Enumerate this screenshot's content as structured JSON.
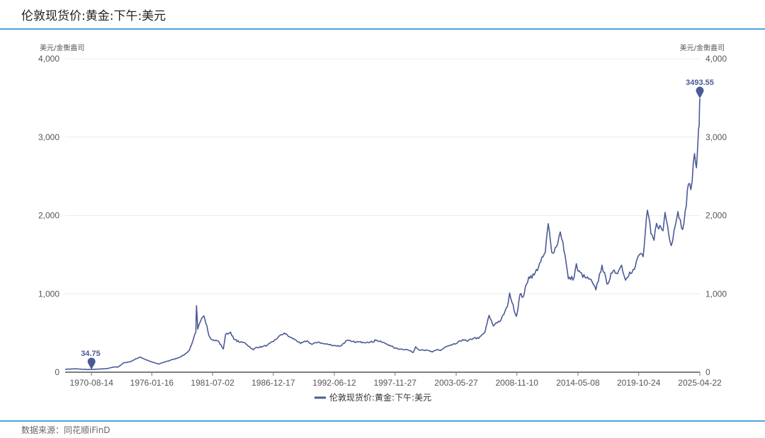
{
  "header": {
    "title": "伦敦现货价:黄金:下午:美元"
  },
  "footer": {
    "source": "数据来源：同花顺iFinD"
  },
  "colors": {
    "line": "#4b5a96",
    "accent_rule": "#4aa3df",
    "grid": "#ececec"
  },
  "chart_data": {
    "type": "line",
    "title": "伦敦现货价:黄金:下午:美元",
    "y_unit_left": "美元/金衡盎司",
    "y_unit_right": "美元/金衡盎司",
    "ylim": [
      0,
      4000
    ],
    "y_ticks": [
      {
        "value": 0,
        "label": "0"
      },
      {
        "value": 1000,
        "label": "1,000"
      },
      {
        "value": 2000,
        "label": "2,000"
      },
      {
        "value": 3000,
        "label": "3,000"
      },
      {
        "value": 4000,
        "label": "4,000"
      }
    ],
    "x_range": [
      "1968-04-01",
      "2025-04-22"
    ],
    "x_ticks": [
      "1970-08-14",
      "1976-01-16",
      "1981-07-02",
      "1986-12-17",
      "1992-06-12",
      "1997-11-27",
      "2003-05-27",
      "2008-11-10",
      "2014-05-08",
      "2019-10-24",
      "2025-04-22"
    ],
    "grid": true,
    "legend_position": "bottom-center",
    "series": [
      {
        "name": "伦敦现货价:黄金:下午:美元",
        "points": [
          [
            "1968-04-01",
            38
          ],
          [
            "1969-03-01",
            43
          ],
          [
            "1970-01-20",
            35
          ],
          [
            "1970-08-14",
            34.75
          ],
          [
            "1971-06-01",
            40
          ],
          [
            "1972-01-01",
            46
          ],
          [
            "1972-08-01",
            66
          ],
          [
            "1973-01-01",
            65
          ],
          [
            "1973-07-01",
            120
          ],
          [
            "1974-01-01",
            130
          ],
          [
            "1974-06-01",
            155
          ],
          [
            "1974-12-30",
            195
          ],
          [
            "1975-06-01",
            165
          ],
          [
            "1976-01-16",
            130
          ],
          [
            "1976-08-25",
            104
          ],
          [
            "1977-06-01",
            140
          ],
          [
            "1977-12-30",
            165
          ],
          [
            "1978-06-01",
            183
          ],
          [
            "1978-12-29",
            226
          ],
          [
            "1979-06-01",
            280
          ],
          [
            "1979-10-01",
            410
          ],
          [
            "1979-12-31",
            512
          ],
          [
            "1980-01-21",
            850
          ],
          [
            "1980-03-01",
            550
          ],
          [
            "1980-06-01",
            650
          ],
          [
            "1980-09-22",
            720
          ],
          [
            "1980-12-31",
            590
          ],
          [
            "1981-03-01",
            470
          ],
          [
            "1981-07-02",
            410
          ],
          [
            "1981-12-31",
            400
          ],
          [
            "1982-06-21",
            297
          ],
          [
            "1982-09-01",
            480
          ],
          [
            "1983-02-15",
            510
          ],
          [
            "1983-06-01",
            420
          ],
          [
            "1983-12-30",
            382
          ],
          [
            "1984-06-01",
            375
          ],
          [
            "1985-02-25",
            285
          ],
          [
            "1985-06-01",
            315
          ],
          [
            "1985-12-31",
            327
          ],
          [
            "1986-06-01",
            345
          ],
          [
            "1986-12-17",
            390
          ],
          [
            "1987-06-01",
            450
          ],
          [
            "1987-12-14",
            500
          ],
          [
            "1988-06-01",
            450
          ],
          [
            "1988-12-30",
            410
          ],
          [
            "1989-06-01",
            365
          ],
          [
            "1989-12-29",
            400
          ],
          [
            "1990-06-01",
            355
          ],
          [
            "1990-12-31",
            386
          ],
          [
            "1991-06-01",
            365
          ],
          [
            "1991-12-31",
            353
          ],
          [
            "1992-06-12",
            340
          ],
          [
            "1992-12-31",
            333
          ],
          [
            "1993-07-30",
            405
          ],
          [
            "1993-12-31",
            390
          ],
          [
            "1994-06-01",
            385
          ],
          [
            "1994-12-30",
            383
          ],
          [
            "1995-06-01",
            385
          ],
          [
            "1995-12-29",
            387
          ],
          [
            "1996-02-02",
            414
          ],
          [
            "1996-12-31",
            369
          ],
          [
            "1997-06-01",
            345
          ],
          [
            "1997-11-27",
            305
          ],
          [
            "1998-06-01",
            295
          ],
          [
            "1998-12-31",
            288
          ],
          [
            "1999-07-20",
            253
          ],
          [
            "1999-10-05",
            325
          ],
          [
            "1999-12-31",
            290
          ],
          [
            "2000-06-01",
            285
          ],
          [
            "2000-12-29",
            272
          ],
          [
            "2001-04-02",
            256
          ],
          [
            "2001-09-20",
            290
          ],
          [
            "2001-12-31",
            277
          ],
          [
            "2002-06-01",
            320
          ],
          [
            "2002-12-31",
            345
          ],
          [
            "2003-05-27",
            365
          ],
          [
            "2003-12-31",
            416
          ],
          [
            "2004-06-01",
            395
          ],
          [
            "2004-12-31",
            438
          ],
          [
            "2005-06-01",
            430
          ],
          [
            "2005-12-30",
            513
          ],
          [
            "2006-05-12",
            725
          ],
          [
            "2006-10-01",
            590
          ],
          [
            "2006-12-29",
            632
          ],
          [
            "2007-06-01",
            660
          ],
          [
            "2007-12-31",
            834
          ],
          [
            "2008-03-17",
            1011
          ],
          [
            "2008-06-01",
            890
          ],
          [
            "2008-10-24",
            713
          ],
          [
            "2008-11-10",
            740
          ],
          [
            "2009-02-20",
            995
          ],
          [
            "2009-06-01",
            960
          ],
          [
            "2009-12-02",
            1215
          ],
          [
            "2010-06-01",
            1240
          ],
          [
            "2010-12-31",
            1405
          ],
          [
            "2011-06-01",
            1530
          ],
          [
            "2011-09-05",
            1895
          ],
          [
            "2011-12-29",
            1530
          ],
          [
            "2012-06-01",
            1600
          ],
          [
            "2012-10-04",
            1790
          ],
          [
            "2012-12-31",
            1660
          ],
          [
            "2013-04-15",
            1390
          ],
          [
            "2013-06-28",
            1192
          ],
          [
            "2013-12-31",
            1204
          ],
          [
            "2014-03-17",
            1385
          ],
          [
            "2014-05-08",
            1290
          ],
          [
            "2014-12-31",
            1206
          ],
          [
            "2015-06-01",
            1190
          ],
          [
            "2015-12-17",
            1050
          ],
          [
            "2016-07-06",
            1366
          ],
          [
            "2016-12-15",
            1125
          ],
          [
            "2017-06-01",
            1265
          ],
          [
            "2017-12-29",
            1291
          ],
          [
            "2018-04-11",
            1365
          ],
          [
            "2018-08-16",
            1174
          ],
          [
            "2018-12-31",
            1279
          ],
          [
            "2019-06-01",
            1310
          ],
          [
            "2019-10-24",
            1490
          ],
          [
            "2019-12-31",
            1515
          ],
          [
            "2020-03-19",
            1474
          ],
          [
            "2020-08-06",
            2067
          ],
          [
            "2020-11-30",
            1765
          ],
          [
            "2021-03-08",
            1683
          ],
          [
            "2021-06-01",
            1900
          ],
          [
            "2021-12-31",
            1806
          ],
          [
            "2022-03-08",
            2039
          ],
          [
            "2022-09-28",
            1615
          ],
          [
            "2022-12-30",
            1812
          ],
          [
            "2023-05-04",
            2050
          ],
          [
            "2023-10-05",
            1820
          ],
          [
            "2023-12-29",
            2062
          ],
          [
            "2024-04-12",
            2400
          ],
          [
            "2024-07-01",
            2330
          ],
          [
            "2024-10-30",
            2790
          ],
          [
            "2024-12-31",
            2609
          ],
          [
            "2025-02-20",
            2950
          ],
          [
            "2025-04-01",
            3140
          ],
          [
            "2025-04-22",
            3493.55
          ]
        ]
      }
    ],
    "annotations": [
      {
        "date": "1970-08-14",
        "value": 34.75,
        "label": "34.75"
      },
      {
        "date": "2025-04-22",
        "value": 3493.55,
        "label": "3493.55"
      }
    ]
  }
}
